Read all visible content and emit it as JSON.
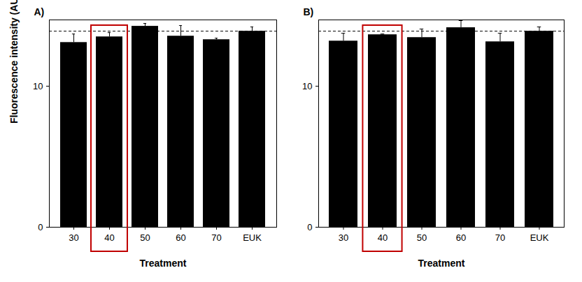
{
  "chart_data": [
    {
      "type": "bar",
      "title": "A)",
      "x_label": "Treatment",
      "y_label": "Fluorescence intensity (AU)",
      "categories": [
        "30",
        "40",
        "50",
        "60",
        "70",
        "EUK"
      ],
      "values": [
        13.1,
        13.5,
        14.25,
        13.55,
        13.3,
        13.9
      ],
      "errors": [
        0.6,
        0.3,
        0.2,
        0.75,
        0.1,
        0.3
      ],
      "reference_line": 13.9,
      "highlight": {
        "category": "40",
        "color": "#c00000"
      },
      "color": "#000000",
      "ylim": [
        0,
        14.7
      ],
      "yticks": [
        0,
        10
      ],
      "grid": false
    },
    {
      "type": "bar",
      "title": "B)",
      "x_label": "Treatment",
      "categories": [
        "30",
        "40",
        "50",
        "60",
        "70",
        "EUK"
      ],
      "values": [
        13.2,
        13.65,
        13.45,
        14.15,
        13.15,
        13.9
      ],
      "errors": [
        0.55,
        0.05,
        0.6,
        0.5,
        0.6,
        0.3
      ],
      "reference_line": 13.9,
      "highlight": {
        "category": "40",
        "color": "#c00000"
      },
      "color": "#000000",
      "ylim": [
        0,
        14.7
      ],
      "yticks": [
        0,
        10
      ],
      "grid": false
    }
  ]
}
